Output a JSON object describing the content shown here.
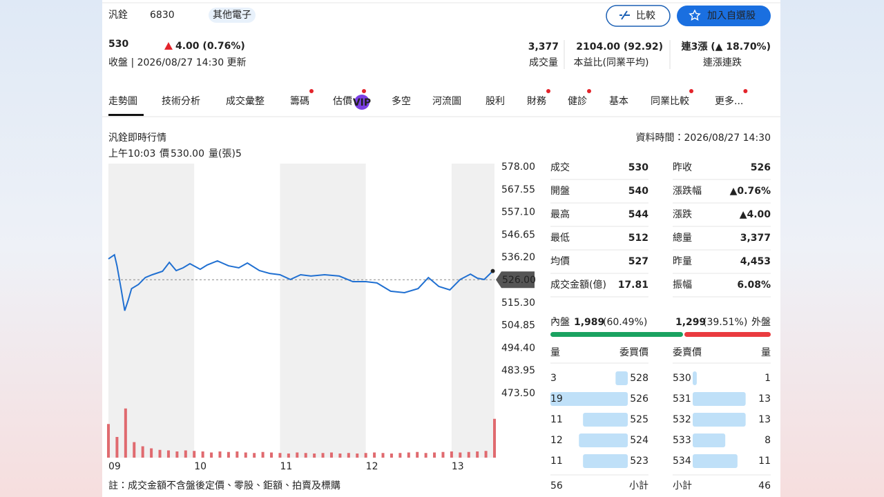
{
  "header": {
    "name": "汎銓",
    "code": "6830",
    "tag": "其他電子",
    "compare_button": "比較",
    "watch_button": "加入自選股",
    "price": "530",
    "change": "4.00 (0.76%)",
    "status": "收盤 | 2026/08/27 14:30 更新",
    "stats": [
      {
        "value": "3,377",
        "label": "成交量"
      },
      {
        "value": "2104.00 (92.92)",
        "label": "本益比(同業平均)"
      },
      {
        "value": "連3漲 (▲ 18.70%)",
        "label": "連漲連跌"
      }
    ]
  },
  "tabs": [
    {
      "label": "走勢圖",
      "dot": false
    },
    {
      "label": "技術分析",
      "dot": false
    },
    {
      "label": "成交彙整",
      "dot": false
    },
    {
      "label": "籌碼",
      "dot": true
    },
    {
      "label": "估價",
      "dot": true,
      "badge": "VIP"
    },
    {
      "label": "多空",
      "dot": false
    },
    {
      "label": "河流圖",
      "dot": false
    },
    {
      "label": "股利",
      "dot": false
    },
    {
      "label": "財務",
      "dot": true
    },
    {
      "label": "健診",
      "dot": true
    },
    {
      "label": "基本",
      "dot": false
    },
    {
      "label": "同業比較",
      "dot": true
    },
    {
      "label": "更多...",
      "dot": true
    }
  ],
  "section": {
    "title": "汎銓即時行情",
    "time": "資料時間：2026/08/27 14:30",
    "info": {
      "time": "上午10:03",
      "price_label": "價",
      "price": "530.00",
      "volume_label": "量(張)",
      "volume": "5"
    }
  },
  "chart": {
    "type": "line",
    "xlim": [
      9,
      13.5
    ],
    "xticks": [
      {
        "value": 9,
        "label": "09"
      },
      {
        "value": 10,
        "label": "10"
      },
      {
        "value": 11,
        "label": "11"
      },
      {
        "value": 12,
        "label": "12"
      },
      {
        "value": 13,
        "label": "13"
      }
    ],
    "ylim": [
      473.5,
      578
    ],
    "yticks": [
      {
        "value": 578,
        "label": "578.00"
      },
      {
        "value": 567.55,
        "label": "567.55"
      },
      {
        "value": 557.1,
        "label": "557.10"
      },
      {
        "value": 546.65,
        "label": "546.65"
      },
      {
        "value": 536.2,
        "label": "536.20"
      },
      {
        "value": 515.3,
        "label": "515.30"
      },
      {
        "value": 504.85,
        "label": "504.85"
      },
      {
        "value": 494.4,
        "label": "494.40"
      },
      {
        "value": 483.95,
        "label": "483.95"
      },
      {
        "value": 473.5,
        "label": "473.50"
      }
    ],
    "reference": {
      "value": 526,
      "label": "526.00"
    },
    "series": [
      {
        "color": "#1f6fd1",
        "x": [
          9.0,
          9.07,
          9.1,
          9.15,
          9.19,
          9.23,
          9.27,
          9.35,
          9.43,
          9.51,
          9.63,
          9.71,
          9.79,
          9.87,
          9.95,
          10.07,
          10.15,
          10.27,
          10.4,
          10.52,
          10.62,
          10.76,
          10.88,
          11.0,
          11.12,
          11.24,
          11.36,
          11.52,
          11.69,
          11.85,
          12.0,
          12.13,
          12.29,
          12.45,
          12.61,
          12.73,
          12.85,
          12.98,
          13.1,
          13.22,
          13.3,
          13.38,
          13.48
        ],
        "values": [
          535.6,
          537.5,
          532.4,
          521.3,
          511.7,
          516.5,
          521.9,
          523.8,
          527,
          528.3,
          529.9,
          534,
          530.2,
          531.5,
          533.4,
          530.8,
          532.8,
          534.7,
          532.4,
          531.5,
          533.7,
          530.2,
          528.9,
          528.3,
          526.1,
          528.3,
          527.7,
          528.3,
          527.7,
          525.1,
          525.1,
          524.5,
          520.7,
          520,
          521.9,
          527,
          522.9,
          521.3,
          526.1,
          528.6,
          526.7,
          526.1,
          530
        ]
      }
    ],
    "volume": {
      "color": "#e06a6f",
      "ylim": [
        0,
        100
      ],
      "x": [
        9,
        9.1,
        9.2,
        9.3,
        9.4,
        9.5,
        9.6,
        9.7,
        9.8,
        9.9,
        10,
        10.1,
        10.2,
        10.3,
        10.4,
        10.5,
        10.6,
        10.7,
        10.8,
        10.9,
        11,
        11.1,
        11.2,
        11.3,
        11.4,
        11.5,
        11.6,
        11.7,
        11.8,
        11.9,
        12,
        12.1,
        12.2,
        12.3,
        12.4,
        12.5,
        12.6,
        12.7,
        12.8,
        12.9,
        13,
        13.1,
        13.2,
        13.3,
        13.4,
        13.5
      ],
      "values": [
        65,
        40,
        95,
        30,
        22,
        18,
        15,
        14,
        12,
        14,
        13,
        12,
        10,
        12,
        11,
        12,
        10,
        9,
        11,
        10,
        9,
        8,
        10,
        9,
        8,
        9,
        10,
        8,
        9,
        8,
        9,
        10,
        9,
        8,
        9,
        10,
        11,
        9,
        10,
        11,
        12,
        10,
        11,
        12,
        13,
        75
      ]
    }
  },
  "quote": {
    "rows": [
      [
        {
          "label": "成交",
          "value": "530",
          "color": "#e3242b"
        },
        {
          "label": "昨收",
          "value": "526",
          "color": "#222222"
        }
      ],
      [
        {
          "label": "開盤",
          "value": "540",
          "color": "#e3242b"
        },
        {
          "label": "漲跌幅",
          "value": "▲0.76%",
          "color": "#e3242b"
        }
      ],
      [
        {
          "label": "最高",
          "value": "544",
          "color": "#e3242b"
        },
        {
          "label": "漲跌",
          "value": "▲4.00",
          "color": "#e3242b"
        }
      ],
      [
        {
          "label": "最低",
          "value": "512",
          "color": "#11925a"
        },
        {
          "label": "總量",
          "value": "3,377",
          "color": "#222222"
        }
      ],
      [
        {
          "label": "均價",
          "value": "527",
          "color": "#222222"
        },
        {
          "label": "昨量",
          "value": "4,453",
          "color": "#222222"
        }
      ],
      [
        {
          "label": "成交金額(億)",
          "value": "17.81",
          "color": "#222222"
        },
        {
          "label": "振幅",
          "value": "6.08%",
          "color": "#222222"
        }
      ]
    ]
  },
  "pressure": {
    "inner": {
      "label": "內盤",
      "value": "1,989",
      "pct": 60.49,
      "pct_label": "(60.49%)"
    },
    "outer": {
      "label": "外盤",
      "value": "1,299",
      "pct": 39.51,
      "pct_label": "(39.51%)"
    }
  },
  "order_book": {
    "headers": [
      "量",
      "委買價",
      "委賣價",
      "量"
    ],
    "bids": [
      {
        "qty": 3,
        "price": 528
      },
      {
        "qty": 19,
        "price": 526
      },
      {
        "qty": 11,
        "price": 525
      },
      {
        "qty": 12,
        "price": 524
      },
      {
        "qty": 11,
        "price": 523
      }
    ],
    "asks": [
      {
        "price": 530,
        "qty": 1
      },
      {
        "price": 531,
        "qty": 13
      },
      {
        "price": 532,
        "qty": 13
      },
      {
        "price": 533,
        "qty": 8
      },
      {
        "price": 534,
        "qty": 11
      }
    ],
    "bid_total": {
      "qty": 56,
      "label": "小計"
    },
    "ask_total": {
      "label": "小計",
      "qty": 46
    }
  },
  "footnote": "註：成交金額不含盤後定價、零股、鉅額、拍賣及標購"
}
